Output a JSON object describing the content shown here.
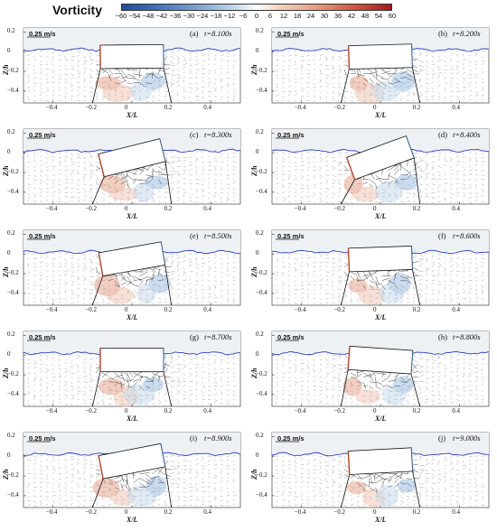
{
  "colorbar": {
    "title": "Vorticity",
    "ticks": [
      "−60",
      "−54",
      "−48",
      "−42",
      "−36",
      "−30",
      "−24",
      "−18",
      "−12",
      "−6",
      "0",
      "6",
      "12",
      "18",
      "24",
      "30",
      "36",
      "42",
      "48",
      "54",
      "60"
    ]
  },
  "axis": {
    "xlabel": "X/L",
    "ylabel": "Z/h",
    "xticks": [
      "−0.4",
      "−0.2",
      "0",
      "0.2",
      "0.4"
    ],
    "yticks": [
      "0.2",
      "0",
      "−0.2",
      "−0.4"
    ],
    "ref_vector": "0.25 m/s"
  },
  "panels": [
    {
      "label": "(a)",
      "time": "t=8.100s",
      "tilt": -0.5,
      "level": 0.0
    },
    {
      "label": "(b)",
      "time": "t=8.200s",
      "tilt": -1.5,
      "level": 0.0
    },
    {
      "label": "(c)",
      "time": "t=8.300s",
      "tilt": -14,
      "level": 0.1
    },
    {
      "label": "(d)",
      "time": "t=8.400s",
      "tilt": -20,
      "level": 0.1
    },
    {
      "label": "(e)",
      "time": "t=8.500s",
      "tilt": -10,
      "level": 0.0
    },
    {
      "label": "(f)",
      "time": "t=8.600s",
      "tilt": -2,
      "level": 0.0
    },
    {
      "label": "(g)",
      "time": "t=8.700s",
      "tilt": 0,
      "level": 0.1
    },
    {
      "label": "(h)",
      "time": "t=8.800s",
      "tilt": 4,
      "level": 0.1
    },
    {
      "label": "(i)",
      "time": "t=8.900s",
      "tilt": -11,
      "level": 0.0
    },
    {
      "label": "(j)",
      "time": "t=9.000s",
      "tilt": -3,
      "level": 0.0
    }
  ]
}
